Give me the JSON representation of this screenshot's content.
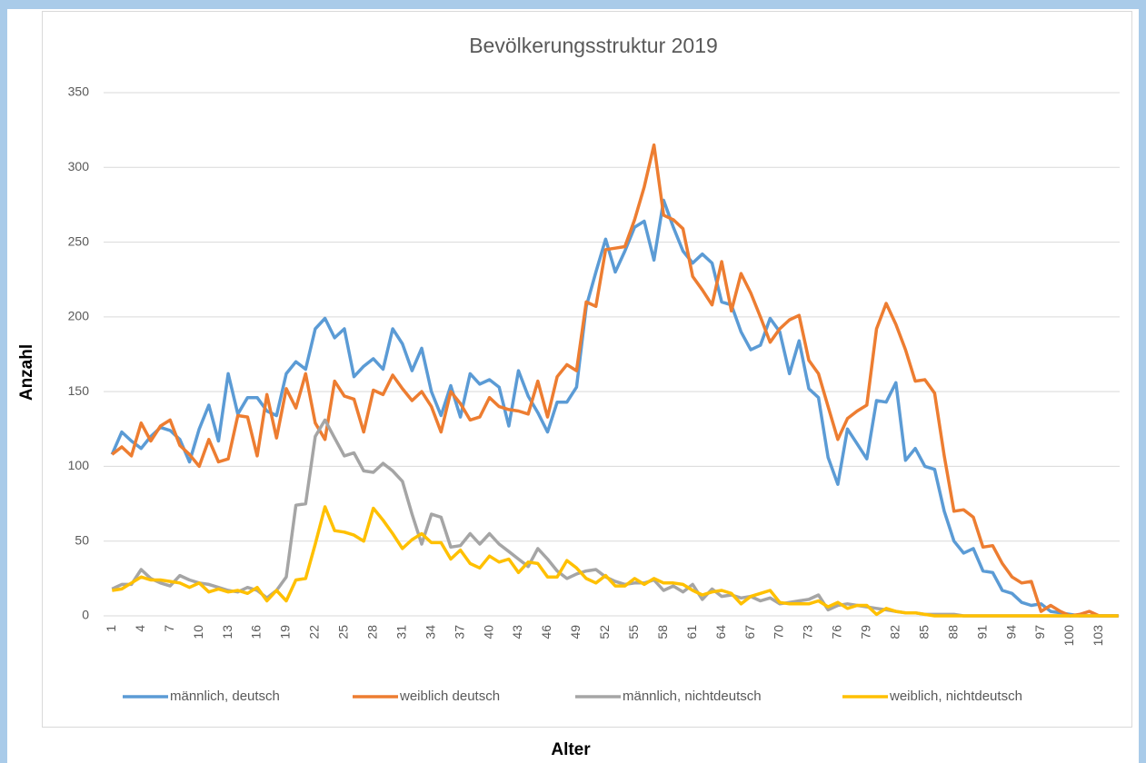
{
  "chart_data": {
    "type": "line",
    "title": "Bevölkerungsstruktur 2019",
    "x_label": "Alter",
    "y_label": "Anzahl",
    "categories": [
      1,
      null,
      null,
      4,
      null,
      null,
      7,
      null,
      null,
      10,
      null,
      null,
      13,
      null,
      null,
      16,
      null,
      null,
      19,
      null,
      null,
      22,
      null,
      null,
      25,
      null,
      null,
      28,
      null,
      null,
      31,
      null,
      null,
      34,
      null,
      null,
      37,
      null,
      null,
      40,
      null,
      null,
      43,
      null,
      null,
      46,
      null,
      null,
      49,
      null,
      null,
      52,
      null,
      null,
      55,
      null,
      null,
      58,
      null,
      null,
      61,
      null,
      null,
      64,
      null,
      null,
      67,
      null,
      null,
      70,
      null,
      null,
      73,
      null,
      null,
      76,
      null,
      null,
      79,
      null,
      null,
      82,
      null,
      null,
      85,
      null,
      null,
      88,
      null,
      null,
      91,
      null,
      null,
      94,
      null,
      null,
      97,
      null,
      null,
      100,
      null,
      null,
      103,
      null,
      null
    ],
    "ylim": [
      0,
      350
    ],
    "yticks": [
      0,
      50,
      100,
      150,
      200,
      250,
      300,
      350
    ],
    "grid": true,
    "legend": "bottom",
    "series": [
      {
        "name": "männlich, deutsch",
        "color": "#5b9bd5",
        "values": [
          108,
          123,
          117,
          112,
          120,
          126,
          124,
          118,
          103,
          125,
          141,
          117,
          162,
          135,
          146,
          146,
          137,
          134,
          162,
          170,
          165,
          192,
          199,
          186,
          192,
          160,
          167,
          172,
          165,
          192,
          182,
          164,
          179,
          150,
          134,
          154,
          133,
          162,
          155,
          158,
          153,
          127,
          164,
          147,
          136,
          123,
          143,
          143,
          153,
          207,
          230,
          252,
          230,
          244,
          260,
          264,
          238,
          278,
          260,
          244,
          236,
          242,
          236,
          210,
          208,
          190,
          178,
          181,
          199,
          190,
          162,
          184,
          152,
          146,
          106,
          88,
          125,
          115,
          105,
          144,
          143,
          156,
          104,
          112,
          100,
          98,
          70,
          50,
          42,
          45,
          30,
          29,
          17,
          15,
          9,
          7,
          8,
          3,
          2,
          1,
          0,
          0,
          0,
          0,
          0
        ]
      },
      {
        "name": "weiblich deutsch",
        "color": "#ed7d31",
        "values": [
          108,
          113,
          107,
          129,
          117,
          127,
          131,
          114,
          108,
          100,
          118,
          103,
          105,
          134,
          133,
          107,
          148,
          119,
          152,
          139,
          162,
          129,
          118,
          157,
          147,
          145,
          123,
          151,
          148,
          161,
          152,
          144,
          150,
          140,
          123,
          150,
          142,
          131,
          133,
          146,
          140,
          138,
          137,
          135,
          157,
          133,
          160,
          168,
          164,
          210,
          207,
          245,
          246,
          247,
          265,
          287,
          315,
          268,
          265,
          259,
          227,
          218,
          208,
          237,
          204,
          229,
          216,
          200,
          183,
          192,
          198,
          201,
          171,
          162,
          140,
          118,
          132,
          137,
          141,
          192,
          209,
          195,
          178,
          157,
          158,
          149,
          107,
          70,
          71,
          66,
          46,
          47,
          35,
          26,
          22,
          23,
          3,
          7,
          3,
          0,
          1,
          3,
          0,
          0,
          0
        ]
      },
      {
        "name": "männlich, nichtdeutsch",
        "color": "#a5a5a5",
        "values": [
          18,
          21,
          21,
          31,
          25,
          22,
          20,
          27,
          24,
          22,
          21,
          19,
          17,
          16,
          19,
          17,
          12,
          17,
          26,
          74,
          75,
          120,
          131,
          119,
          107,
          109,
          97,
          96,
          102,
          97,
          90,
          68,
          48,
          68,
          66,
          46,
          47,
          55,
          48,
          55,
          48,
          43,
          38,
          33,
          45,
          38,
          30,
          25,
          28,
          30,
          31,
          26,
          23,
          21,
          22,
          22,
          24,
          17,
          20,
          16,
          21,
          11,
          18,
          13,
          14,
          12,
          13,
          10,
          12,
          8,
          9,
          10,
          11,
          14,
          4,
          7,
          8,
          7,
          6,
          5,
          4,
          3,
          2,
          2,
          1,
          1,
          1,
          1,
          0,
          0,
          0,
          0,
          0,
          0,
          0,
          0,
          0,
          0,
          0,
          0,
          0,
          0,
          0,
          0,
          0
        ]
      },
      {
        "name": "weiblich, nichtdeutsch",
        "color": "#ffc000",
        "values": [
          17,
          18,
          22,
          26,
          24,
          24,
          23,
          22,
          19,
          22,
          16,
          18,
          16,
          17,
          15,
          19,
          10,
          17,
          10,
          24,
          25,
          48,
          73,
          57,
          56,
          54,
          50,
          72,
          64,
          55,
          45,
          51,
          55,
          49,
          49,
          38,
          44,
          35,
          32,
          40,
          36,
          38,
          29,
          36,
          35,
          26,
          26,
          37,
          32,
          25,
          22,
          27,
          20,
          20,
          25,
          21,
          25,
          22,
          22,
          21,
          17,
          14,
          16,
          17,
          15,
          8,
          13,
          15,
          17,
          9,
          8,
          8,
          8,
          10,
          6,
          9,
          5,
          7,
          7,
          1,
          5,
          3,
          2,
          2,
          1,
          0,
          0,
          0,
          0,
          0,
          0,
          0,
          0,
          0,
          0,
          0,
          0,
          0,
          0,
          0,
          0,
          0,
          0,
          0,
          0
        ]
      }
    ]
  }
}
